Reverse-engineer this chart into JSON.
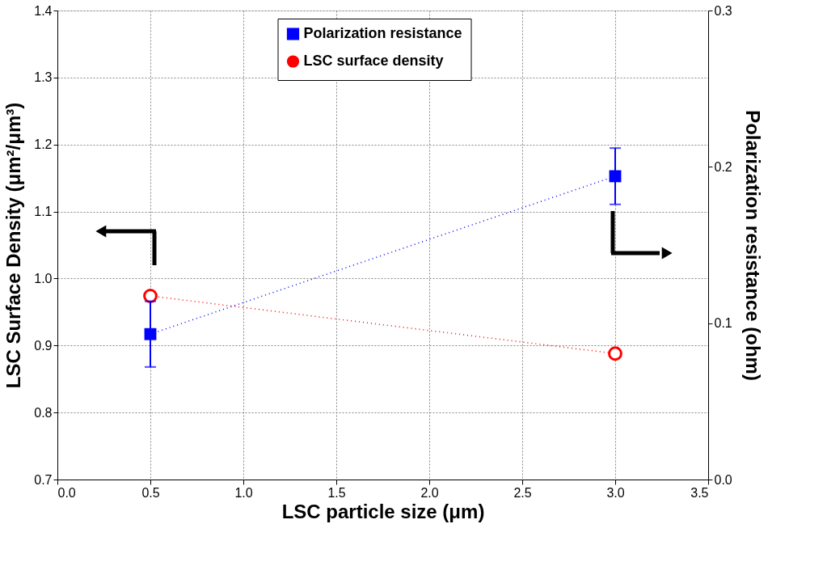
{
  "chart_data": {
    "type": "line",
    "xlabel": "LSC particle size (μm)",
    "ylabel": "LSC Surface Density (μm²/μm³)",
    "y2label": "Polarization resistance (ohm)",
    "x": [
      0.5,
      3.0
    ],
    "series": [
      {
        "name": "Polarization resistance",
        "color": "#0000ff",
        "axis": "y2",
        "marker": "square",
        "values": [
          0.093,
          0.194
        ],
        "errors": [
          0.021,
          0.018
        ]
      },
      {
        "name": "LSC surface density",
        "color": "#ff0000",
        "axis": "y",
        "marker": "circle",
        "values": [
          0.974,
          0.888
        ]
      }
    ],
    "xlim": [
      0,
      3.5
    ],
    "xticks": [
      {
        "value": 0,
        "label": "0.0"
      },
      0.5,
      {
        "value": 1,
        "label": "1.0"
      },
      1.5,
      {
        "value": 2,
        "label": "2.0"
      },
      2.5,
      {
        "value": 3,
        "label": "3.0"
      },
      3.5
    ],
    "ylim": [
      0.7,
      1.4
    ],
    "yticks": [
      0.7,
      0.8,
      0.9,
      {
        "value": 1,
        "label": "1.0"
      },
      1.1,
      1.2,
      1.3,
      1.4
    ],
    "y2lim": [
      0,
      0.3
    ],
    "y2ticks": [
      {
        "value": 0,
        "label": "0.0"
      },
      0.1,
      0.2,
      0.3
    ],
    "grid": true,
    "legend": "top",
    "line_style": "dotted"
  }
}
